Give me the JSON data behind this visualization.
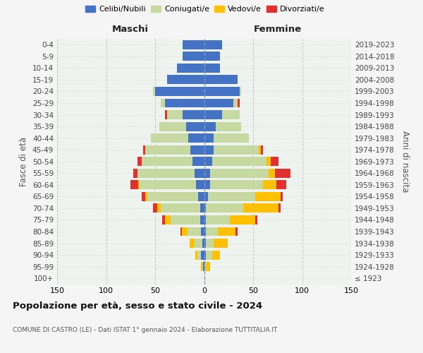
{
  "age_groups": [
    "0-4",
    "5-9",
    "10-14",
    "15-19",
    "20-24",
    "25-29",
    "30-34",
    "35-39",
    "40-44",
    "45-49",
    "50-54",
    "55-59",
    "60-64",
    "65-69",
    "70-74",
    "75-79",
    "80-84",
    "85-89",
    "90-94",
    "95-99",
    "100+"
  ],
  "birth_years": [
    "2019-2023",
    "2014-2018",
    "2009-2013",
    "2004-2008",
    "1999-2003",
    "1994-1998",
    "1989-1993",
    "1984-1988",
    "1979-1983",
    "1974-1978",
    "1969-1973",
    "1964-1968",
    "1959-1963",
    "1954-1958",
    "1949-1953",
    "1944-1948",
    "1939-1943",
    "1934-1938",
    "1929-1933",
    "1924-1928",
    "≤ 1923"
  ],
  "maschi": {
    "celibi": [
      22,
      22,
      28,
      38,
      50,
      40,
      22,
      18,
      16,
      14,
      12,
      10,
      8,
      6,
      4,
      4,
      3,
      2,
      3,
      1,
      0
    ],
    "coniugati": [
      0,
      0,
      0,
      0,
      2,
      4,
      16,
      28,
      38,
      46,
      52,
      58,
      58,
      52,
      40,
      30,
      14,
      8,
      4,
      1,
      0
    ],
    "vedovi": [
      0,
      0,
      0,
      0,
      0,
      0,
      0,
      0,
      0,
      0,
      0,
      0,
      1,
      2,
      4,
      6,
      6,
      5,
      2,
      1,
      0
    ],
    "divorziati": [
      0,
      0,
      0,
      0,
      0,
      0,
      2,
      0,
      0,
      2,
      4,
      4,
      8,
      4,
      4,
      3,
      1,
      0,
      0,
      0,
      0
    ]
  },
  "femmine": {
    "nubili": [
      18,
      16,
      16,
      34,
      36,
      30,
      18,
      12,
      10,
      10,
      8,
      6,
      6,
      4,
      2,
      2,
      2,
      2,
      2,
      0,
      0
    ],
    "coniugate": [
      0,
      0,
      0,
      0,
      2,
      4,
      18,
      26,
      36,
      46,
      56,
      60,
      54,
      48,
      38,
      24,
      12,
      8,
      6,
      2,
      0
    ],
    "vedove": [
      0,
      0,
      0,
      0,
      0,
      0,
      0,
      0,
      0,
      2,
      4,
      6,
      14,
      26,
      36,
      26,
      18,
      14,
      8,
      4,
      0
    ],
    "divorziate": [
      0,
      0,
      0,
      0,
      0,
      2,
      0,
      0,
      0,
      2,
      8,
      16,
      10,
      2,
      2,
      2,
      2,
      0,
      0,
      0,
      0
    ]
  },
  "colors": {
    "celibi_nubili": "#4472c4",
    "coniugati": "#c5d9a0",
    "vedovi": "#ffc000",
    "divorziati": "#e03030"
  },
  "title": "Popolazione per età, sesso e stato civile - 2024",
  "subtitle": "COMUNE DI CASTRO (LE) - Dati ISTAT 1° gennaio 2024 - Elaborazione TUTTITALIA.IT",
  "xlabel_left": "Maschi",
  "xlabel_right": "Femmine",
  "ylabel_left": "Fasce di età",
  "ylabel_right": "Anni di nascita",
  "xlim": 150
}
